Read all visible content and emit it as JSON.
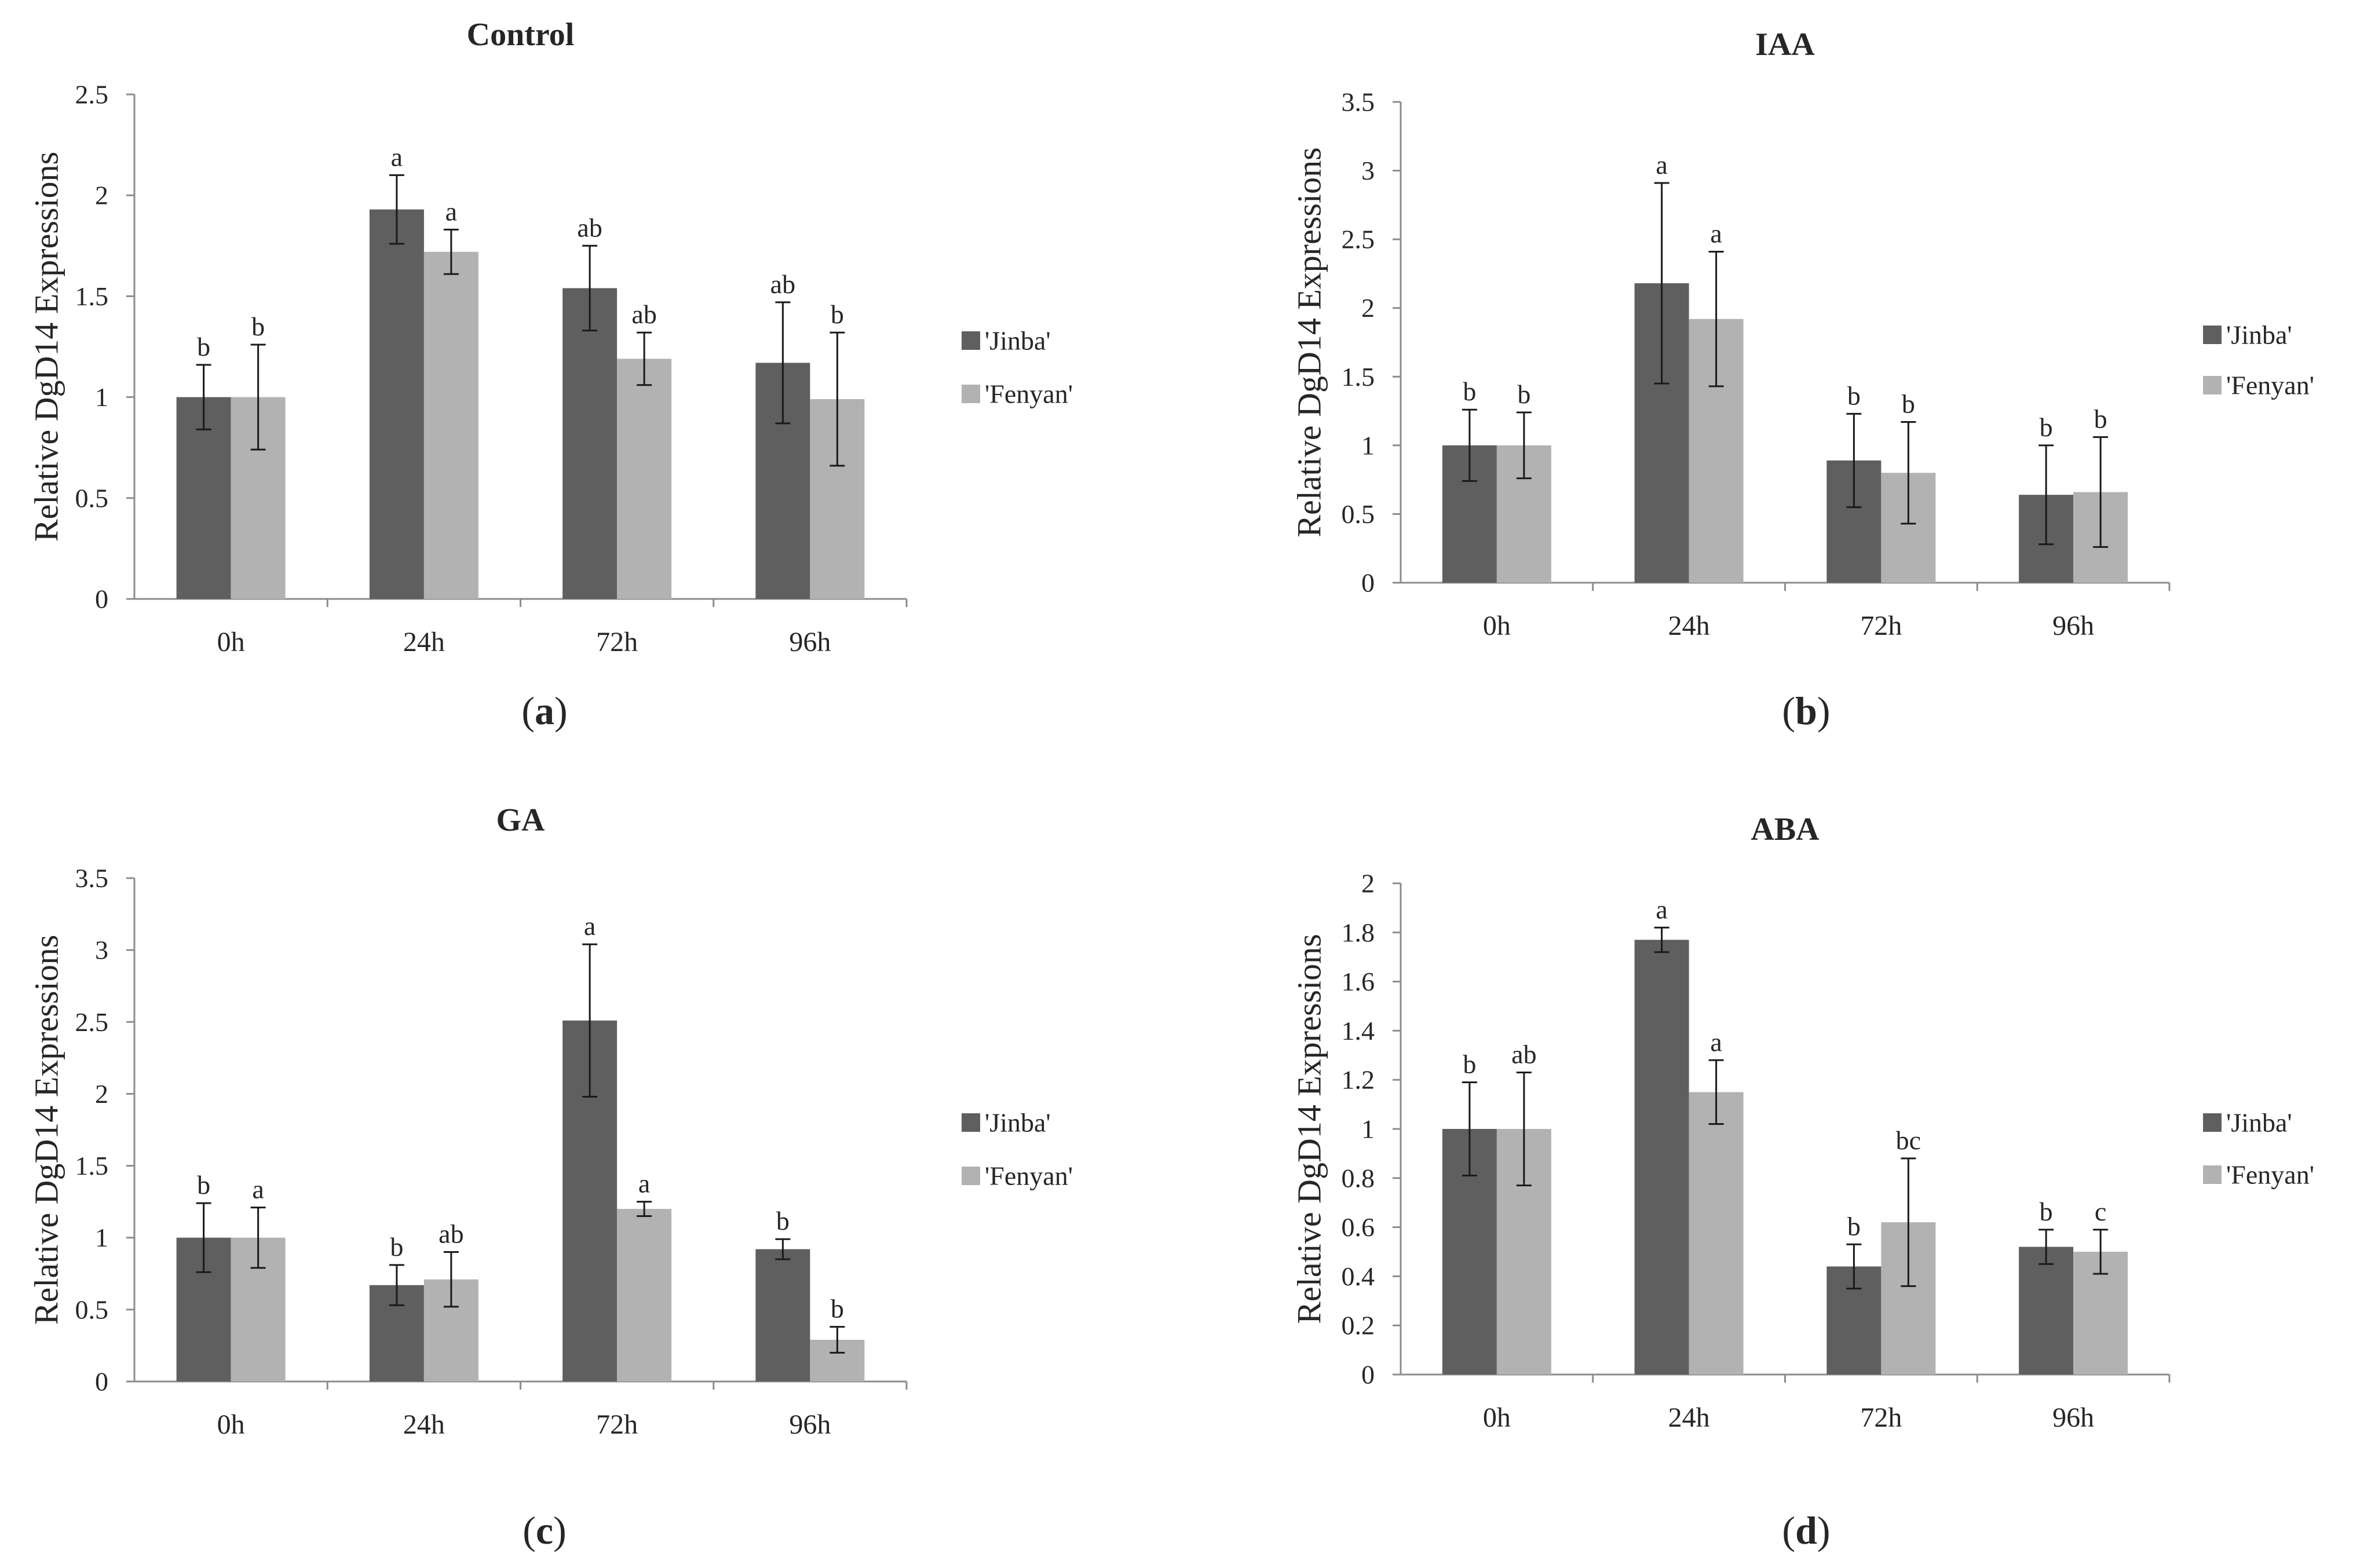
{
  "colors": {
    "jinba": "#5f5f5f",
    "fenyan": "#b2b2b2",
    "axis": "#8c8c8c",
    "error_bar": "#1a1a1a",
    "text": "#262626"
  },
  "chart_data": [
    {
      "type": "bar",
      "panel": "a",
      "caption": "(a)",
      "caption_letter": "a",
      "title": "Control",
      "ylabel": "Relative DgD14 Expressions",
      "xlabel": "",
      "categories": [
        "0h",
        "24h",
        "72h",
        "96h"
      ],
      "ylim": [
        0,
        2.5
      ],
      "yticks": [
        0,
        0.5,
        1,
        1.5,
        2,
        2.5
      ],
      "ytick_labels": [
        "0",
        "0.5",
        "1",
        "1.5",
        "2",
        "2.5"
      ],
      "legend_position": "right",
      "series": [
        {
          "name": "'Jinba'",
          "values": [
            1.0,
            1.93,
            1.54,
            1.17
          ],
          "errors": [
            0.16,
            0.17,
            0.21,
            0.3
          ],
          "labels": [
            "b",
            "a",
            "ab",
            "ab"
          ]
        },
        {
          "name": "'Fenyan'",
          "values": [
            1.0,
            1.72,
            1.19,
            0.99
          ],
          "errors": [
            0.26,
            0.11,
            0.13,
            0.33
          ],
          "labels": [
            "b",
            "a",
            "ab",
            "b"
          ]
        }
      ]
    },
    {
      "type": "bar",
      "panel": "b",
      "caption": "(b)",
      "caption_letter": "b",
      "title": "IAA",
      "ylabel": "Relative DgD14 Expressions",
      "xlabel": "",
      "categories": [
        "0h",
        "24h",
        "72h",
        "96h"
      ],
      "ylim": [
        0,
        3.5
      ],
      "yticks": [
        0,
        0.5,
        1,
        1.5,
        2,
        2.5,
        3,
        3.5
      ],
      "ytick_labels": [
        "0",
        "0.5",
        "1",
        "1.5",
        "2",
        "2.5",
        "3",
        "3.5"
      ],
      "legend_position": "right",
      "series": [
        {
          "name": "'Jinba'",
          "values": [
            1.0,
            2.18,
            0.89,
            0.64
          ],
          "errors": [
            0.26,
            0.73,
            0.34,
            0.36
          ],
          "labels": [
            "b",
            "a",
            "b",
            "b"
          ]
        },
        {
          "name": "'Fenyan'",
          "values": [
            1.0,
            1.92,
            0.8,
            0.66
          ],
          "errors": [
            0.24,
            0.49,
            0.37,
            0.4
          ],
          "labels": [
            "b",
            "a",
            "b",
            "b"
          ]
        }
      ]
    },
    {
      "type": "bar",
      "panel": "c",
      "caption": "(c)",
      "caption_letter": "c",
      "title": "GA",
      "ylabel": "Relative DgD14 Expressions",
      "xlabel": "",
      "categories": [
        "0h",
        "24h",
        "72h",
        "96h"
      ],
      "ylim": [
        0,
        3.5
      ],
      "yticks": [
        0,
        0.5,
        1,
        1.5,
        2,
        2.5,
        3,
        3.5
      ],
      "ytick_labels": [
        "0",
        "0.5",
        "1",
        "1.5",
        "2",
        "2.5",
        "3",
        "3.5"
      ],
      "legend_position": "right",
      "series": [
        {
          "name": "'Jinba'",
          "values": [
            1.0,
            0.67,
            2.51,
            0.92
          ],
          "errors": [
            0.24,
            0.14,
            0.53,
            0.07
          ],
          "labels": [
            "b",
            "b",
            "a",
            "b"
          ]
        },
        {
          "name": "'Fenyan'",
          "values": [
            1.0,
            0.71,
            1.2,
            0.29
          ],
          "errors": [
            0.21,
            0.19,
            0.05,
            0.09
          ],
          "labels": [
            "a",
            "ab",
            "a",
            "b"
          ]
        }
      ]
    },
    {
      "type": "bar",
      "panel": "d",
      "caption": "(d)",
      "caption_letter": "d",
      "title": "ABA",
      "ylabel": "Relative DgD14 Expressions",
      "xlabel": "",
      "categories": [
        "0h",
        "24h",
        "72h",
        "96h"
      ],
      "ylim": [
        0,
        2
      ],
      "yticks": [
        0,
        0.2,
        0.4,
        0.6,
        0.8,
        1,
        1.2,
        1.4,
        1.6,
        1.8,
        2
      ],
      "ytick_labels": [
        "0",
        "0.2",
        "0.4",
        "0.6",
        "0.8",
        "1",
        "1.2",
        "1.4",
        "1.6",
        "1.8",
        "2"
      ],
      "legend_position": "right",
      "series": [
        {
          "name": "'Jinba'",
          "values": [
            1.0,
            1.77,
            0.44,
            0.52
          ],
          "errors": [
            0.19,
            0.05,
            0.09,
            0.07
          ],
          "labels": [
            "b",
            "a",
            "b",
            "b"
          ]
        },
        {
          "name": "'Fenyan'",
          "values": [
            1.0,
            1.15,
            0.62,
            0.5
          ],
          "errors": [
            0.23,
            0.13,
            0.26,
            0.09
          ],
          "labels": [
            "ab",
            "a",
            "bc",
            "c"
          ]
        }
      ]
    }
  ]
}
